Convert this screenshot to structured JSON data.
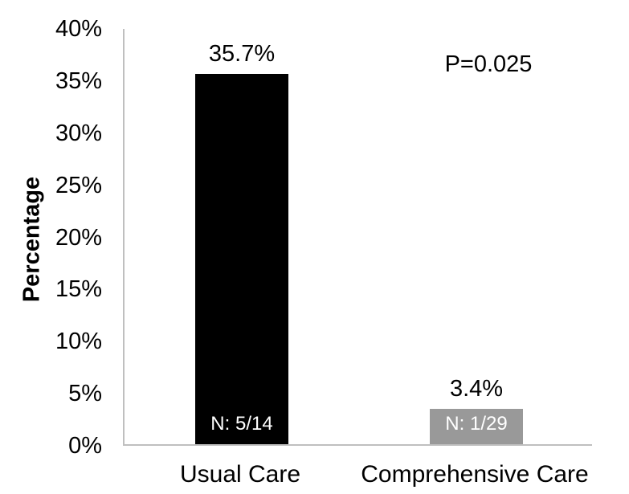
{
  "chart_data": {
    "type": "bar",
    "title": "",
    "ylabel": "Percentage",
    "xlabel": "",
    "categories": [
      "Usual Care",
      "Comprehensive Care"
    ],
    "values": [
      35.7,
      3.4
    ],
    "value_labels": [
      "35.7%",
      "3.4%"
    ],
    "bar_annotations": [
      "N: 5/14",
      "N: 1/29"
    ],
    "bar_colors": [
      "#000000",
      "#999999"
    ],
    "bar_annotation_text_color": "#ffffff",
    "axis_color": "#bfbfbf",
    "text_color": "#000000",
    "ylim": [
      0,
      40
    ],
    "ytick_step": 5,
    "ytick_labels": [
      "0%",
      "5%",
      "10%",
      "15%",
      "20%",
      "25%",
      "30%",
      "35%",
      "40%"
    ],
    "grid": false,
    "legend": "none",
    "p_annotation": "P=0.025"
  }
}
